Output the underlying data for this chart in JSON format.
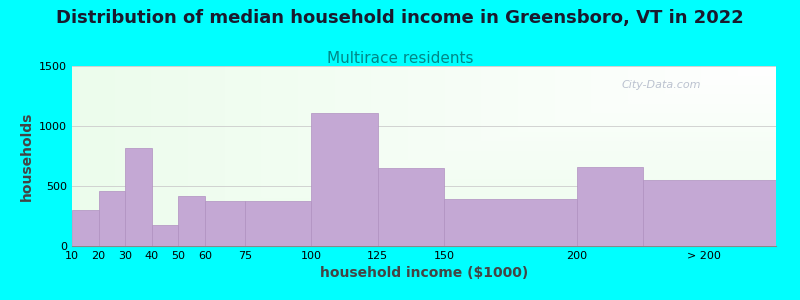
{
  "title": "Distribution of median household income in Greensboro, VT in 2022",
  "subtitle": "Multirace residents",
  "xlabel": "household income ($1000)",
  "ylabel": "households",
  "background_color": "#00FFFF",
  "bar_color": "#c4a8d4",
  "bar_edge_color": "#b090c0",
  "categories": [
    "10",
    "20",
    "30",
    "40",
    "50",
    "60",
    "75",
    "100",
    "125",
    "150",
    "200",
    "> 200"
  ],
  "values": [
    300,
    460,
    820,
    175,
    415,
    375,
    375,
    1110,
    650,
    390,
    660,
    550
  ],
  "ylim": [
    0,
    1500
  ],
  "yticks": [
    0,
    500,
    1000,
    1500
  ],
  "title_fontsize": 13,
  "subtitle_fontsize": 11,
  "subtitle_color": "#008888",
  "axis_label_fontsize": 10,
  "tick_fontsize": 8,
  "watermark": "City-Data.com"
}
